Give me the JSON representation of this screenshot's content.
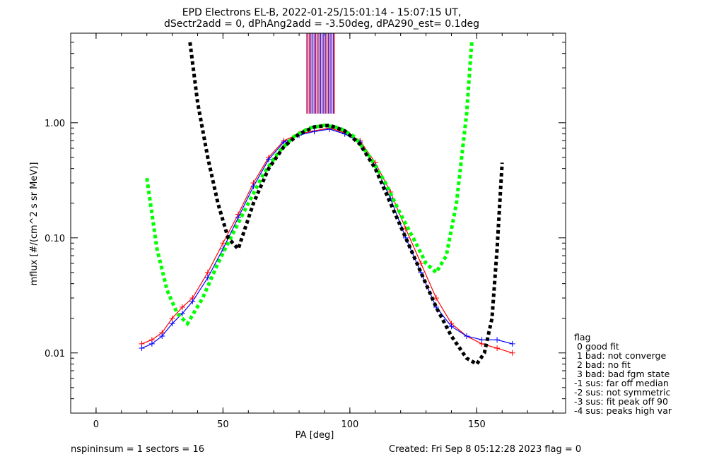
{
  "chart_data": {
    "type": "line",
    "title": "EPD Electrons EL-B, 2022-01-25/15:01:14 - 15:07:15 UT,",
    "subtitle": "dSectr2add = 0, dPhAng2add = -3.50deg, dPA290_est=   0.1deg",
    "xlabel": "PA [deg]",
    "ylabel": "mflux [#/(cm^2 s sr MeV)]",
    "x_scale": "linear",
    "y_scale": "log",
    "xlim": [
      -10,
      185
    ],
    "ylim": [
      0.003,
      6.0
    ],
    "x_ticks": [
      {
        "value": 0,
        "label": "0"
      },
      {
        "value": 50,
        "label": "50"
      },
      {
        "value": 100,
        "label": "100"
      },
      {
        "value": 150,
        "label": "150"
      }
    ],
    "y_ticks": [
      {
        "value": 0.01,
        "label": "0.01"
      },
      {
        "value": 0.1,
        "label": "0.10"
      },
      {
        "value": 1.0,
        "label": "1.00"
      }
    ],
    "series": [
      {
        "color": "#ff0000",
        "style": "solid-with-plus-markers",
        "x": [
          18,
          22,
          26,
          30,
          34,
          38,
          44,
          50,
          56,
          62,
          68,
          74,
          80,
          86,
          92,
          98,
          104,
          110,
          116,
          122,
          128,
          134,
          140,
          146,
          152,
          158,
          164
        ],
        "y": [
          0.012,
          0.013,
          0.015,
          0.02,
          0.025,
          0.03,
          0.05,
          0.09,
          0.16,
          0.3,
          0.5,
          0.7,
          0.8,
          0.85,
          0.9,
          0.82,
          0.7,
          0.45,
          0.25,
          0.12,
          0.06,
          0.03,
          0.018,
          0.014,
          0.012,
          0.011,
          0.01
        ]
      },
      {
        "color": "#0000ff",
        "style": "solid-with-plus-markers",
        "x": [
          18,
          22,
          26,
          30,
          34,
          38,
          44,
          50,
          56,
          62,
          68,
          74,
          80,
          86,
          92,
          98,
          104,
          110,
          116,
          122,
          128,
          134,
          140,
          146,
          152,
          158,
          164
        ],
        "y": [
          0.011,
          0.012,
          0.014,
          0.018,
          0.022,
          0.028,
          0.045,
          0.08,
          0.15,
          0.28,
          0.48,
          0.68,
          0.78,
          0.84,
          0.88,
          0.8,
          0.68,
          0.42,
          0.22,
          0.1,
          0.05,
          0.025,
          0.017,
          0.014,
          0.013,
          0.013,
          0.012
        ]
      },
      {
        "color": "#00ff00",
        "style": "dashed",
        "x": [
          20,
          24,
          28,
          32,
          36,
          42,
          48,
          54,
          60,
          66,
          72,
          78,
          84,
          90,
          96,
          102,
          108,
          114,
          120,
          126,
          130,
          134,
          138,
          142,
          146,
          148
        ],
        "y": [
          0.33,
          0.08,
          0.035,
          0.022,
          0.018,
          0.03,
          0.06,
          0.11,
          0.2,
          0.36,
          0.56,
          0.76,
          0.9,
          0.95,
          0.9,
          0.75,
          0.5,
          0.3,
          0.16,
          0.09,
          0.06,
          0.05,
          0.07,
          0.2,
          1.2,
          5.0
        ]
      },
      {
        "color": "#000000",
        "style": "dashed",
        "x": [
          37,
          40,
          44,
          48,
          52,
          56,
          62,
          68,
          74,
          80,
          86,
          92,
          98,
          104,
          110,
          116,
          122,
          128,
          134,
          140,
          146,
          150,
          153,
          156,
          158,
          160
        ],
        "y": [
          5.0,
          1.5,
          0.5,
          0.2,
          0.1,
          0.08,
          0.2,
          0.4,
          0.62,
          0.8,
          0.92,
          0.95,
          0.85,
          0.65,
          0.4,
          0.2,
          0.1,
          0.05,
          0.025,
          0.014,
          0.009,
          0.008,
          0.01,
          0.02,
          0.08,
          0.45
        ]
      }
    ],
    "saturation_band": {
      "x_range": [
        83,
        94
      ],
      "y_min": 1.2,
      "colors": [
        "#ff0000",
        "#0000ff"
      ]
    },
    "legend": {
      "position": "right",
      "header": "flag",
      "entries": [
        " 0 good fit",
        " 1 bad: not converge",
        " 2 bad: no fit",
        " 3 bad: bad fgm state",
        "-1 sus: far off median",
        "-2 sus: not symmetric",
        "-3 sus: fit peak off 90",
        "-4 sus: peaks high var"
      ]
    },
    "footer": {
      "left": "nspininsum =  1  sectors = 16",
      "right": "Created: Fri Sep  8 05:12:28 2023   flag = 0"
    },
    "grid": false
  }
}
